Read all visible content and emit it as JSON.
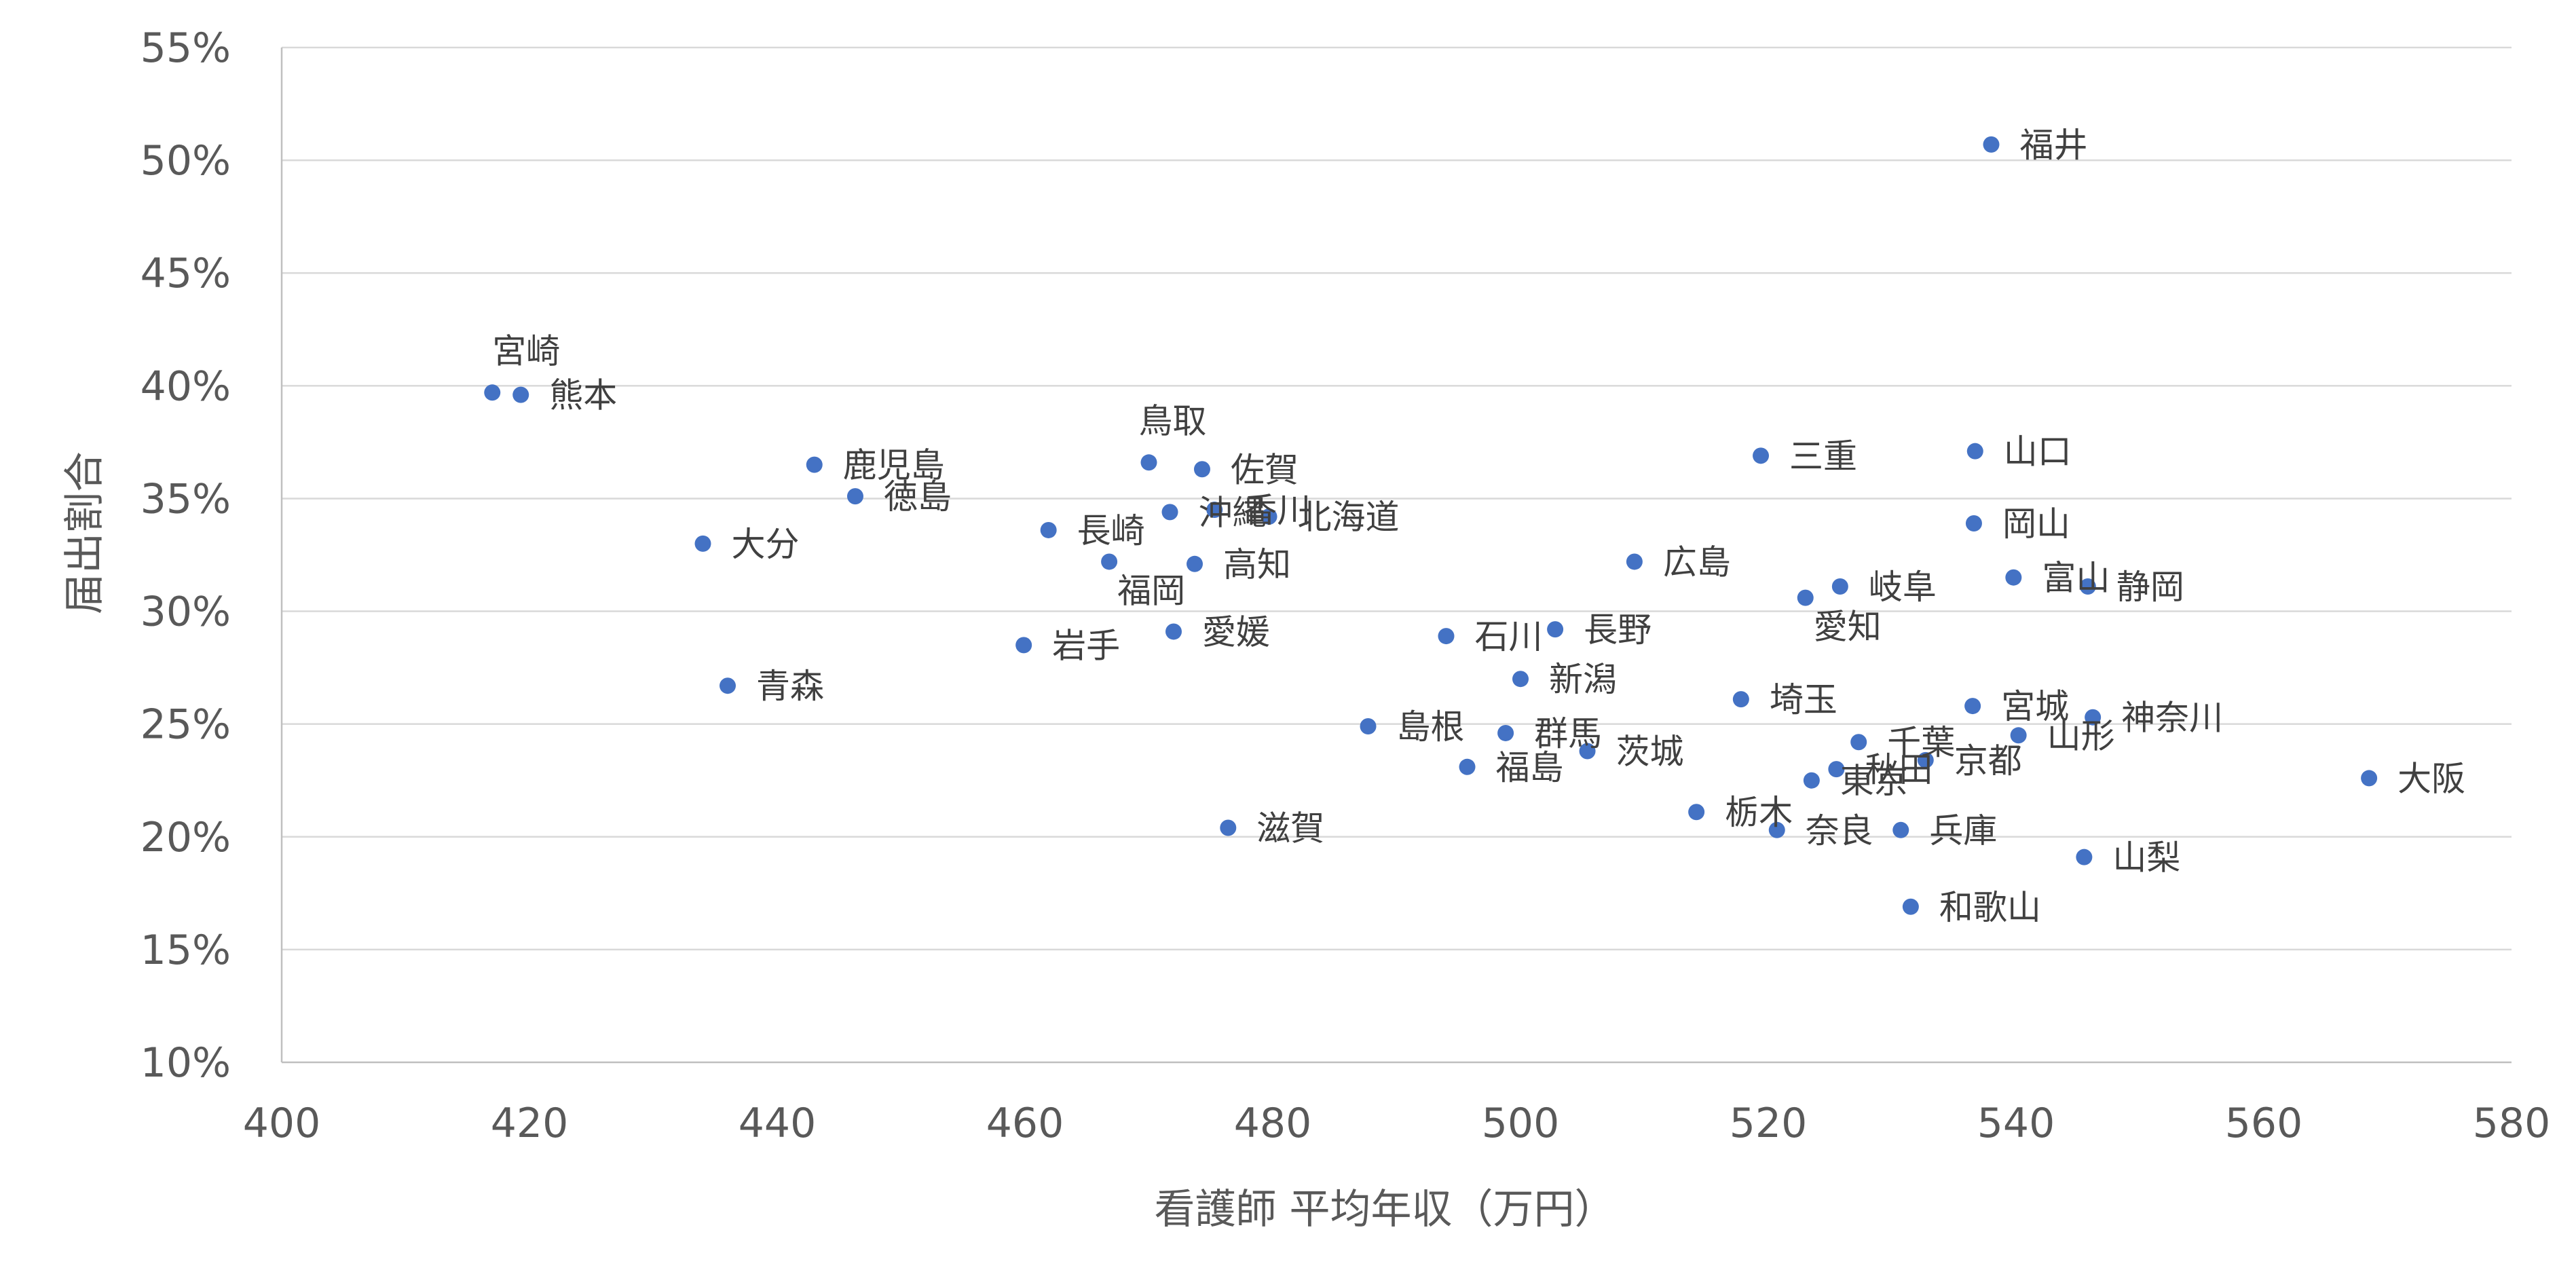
{
  "chart_data": {
    "type": "scatter",
    "title": "",
    "xlabel": "看護師 平均年収（万円）",
    "ylabel": "届出割合",
    "xlim": [
      400,
      580
    ],
    "ylim": [
      10,
      55
    ],
    "x_ticks": [
      "400",
      "420",
      "440",
      "460",
      "480",
      "500",
      "520",
      "540",
      "560",
      "580"
    ],
    "y_ticks": [
      "10%",
      "15%",
      "20%",
      "25%",
      "30%",
      "35%",
      "40%",
      "45%",
      "50%",
      "55%"
    ],
    "grid": true,
    "legend": "none",
    "marker_color": "#4472c4",
    "points": [
      {
        "label": "福井",
        "x": 538.0,
        "y": 50.7
      },
      {
        "label": "宮崎",
        "x": 417.0,
        "y": 39.7
      },
      {
        "label": "熊本",
        "x": 419.3,
        "y": 39.6
      },
      {
        "label": "鹿児島",
        "x": 443.0,
        "y": 36.5
      },
      {
        "label": "徳島",
        "x": 446.3,
        "y": 35.1
      },
      {
        "label": "大分",
        "x": 434.0,
        "y": 33.0
      },
      {
        "label": "青森",
        "x": 436.0,
        "y": 26.7
      },
      {
        "label": "鳥取",
        "x": 470.0,
        "y": 36.6
      },
      {
        "label": "佐賀",
        "x": 474.3,
        "y": 36.3
      },
      {
        "label": "沖縄",
        "x": 471.7,
        "y": 34.4
      },
      {
        "label": "香川",
        "x": 475.3,
        "y": 34.5
      },
      {
        "label": "北海道",
        "x": 479.7,
        "y": 34.2
      },
      {
        "label": "長崎",
        "x": 461.9,
        "y": 33.6
      },
      {
        "label": "福岡",
        "x": 466.8,
        "y": 32.2
      },
      {
        "label": "高知",
        "x": 473.7,
        "y": 32.1
      },
      {
        "label": "岩手",
        "x": 459.9,
        "y": 28.5
      },
      {
        "label": "愛媛",
        "x": 472.0,
        "y": 29.1
      },
      {
        "label": "滋賀",
        "x": 476.4,
        "y": 20.4
      },
      {
        "label": "島根",
        "x": 487.7,
        "y": 24.9
      },
      {
        "label": "石川",
        "x": 494.0,
        "y": 28.9
      },
      {
        "label": "長野",
        "x": 502.8,
        "y": 29.2
      },
      {
        "label": "新潟",
        "x": 500.0,
        "y": 27.0
      },
      {
        "label": "群馬",
        "x": 498.8,
        "y": 24.6
      },
      {
        "label": "福島",
        "x": 495.7,
        "y": 23.1
      },
      {
        "label": "茨城",
        "x": 505.4,
        "y": 23.8
      },
      {
        "label": "広島",
        "x": 509.2,
        "y": 32.2
      },
      {
        "label": "三重",
        "x": 519.4,
        "y": 36.9
      },
      {
        "label": "山口",
        "x": 536.7,
        "y": 37.1
      },
      {
        "label": "岡山",
        "x": 536.6,
        "y": 33.9
      },
      {
        "label": "岐阜",
        "x": 525.8,
        "y": 31.1
      },
      {
        "label": "愛知",
        "x": 523.0,
        "y": 30.6
      },
      {
        "label": "富山",
        "x": 539.8,
        "y": 31.5
      },
      {
        "label": "静岡",
        "x": 545.8,
        "y": 31.1
      },
      {
        "label": "埼玉",
        "x": 517.8,
        "y": 26.1
      },
      {
        "label": "宮城",
        "x": 536.5,
        "y": 25.8
      },
      {
        "label": "神奈川",
        "x": 546.2,
        "y": 25.3
      },
      {
        "label": "山形",
        "x": 540.2,
        "y": 24.5
      },
      {
        "label": "千葉",
        "x": 527.3,
        "y": 24.2
      },
      {
        "label": "京都",
        "x": 532.7,
        "y": 23.4
      },
      {
        "label": "秋田",
        "x": 525.5,
        "y": 23.0
      },
      {
        "label": "東京",
        "x": 523.5,
        "y": 22.5
      },
      {
        "label": "栃木",
        "x": 514.2,
        "y": 21.1
      },
      {
        "label": "奈良",
        "x": 520.7,
        "y": 20.3
      },
      {
        "label": "兵庫",
        "x": 530.7,
        "y": 20.3
      },
      {
        "label": "山梨",
        "x": 545.5,
        "y": 19.1
      },
      {
        "label": "和歌山",
        "x": 531.5,
        "y": 16.9
      },
      {
        "label": "大阪",
        "x": 568.5,
        "y": 22.6
      }
    ]
  }
}
